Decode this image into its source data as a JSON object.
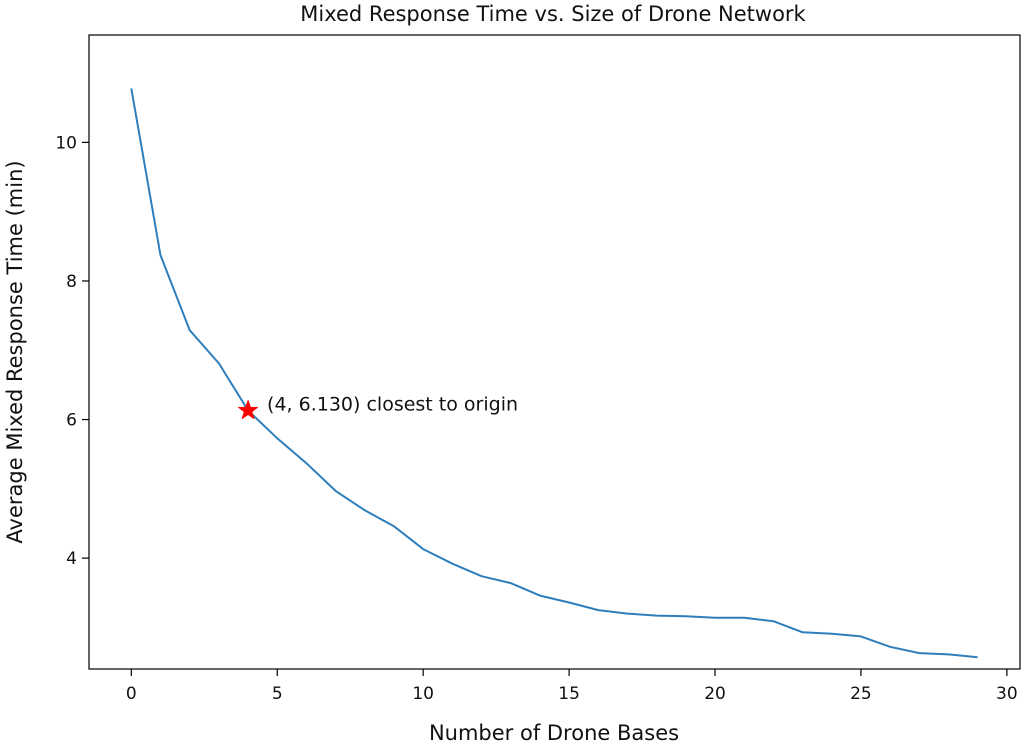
{
  "chart_data": {
    "type": "line",
    "title": "Mixed Response Time vs. Size of Drone Network",
    "xlabel": "Number of Drone Bases",
    "ylabel": "Average Mixed Response Time (min)",
    "xlim": [
      -1.45,
      30.45
    ],
    "ylim": [
      2.4,
      11.55
    ],
    "xticks": [
      0,
      5,
      10,
      15,
      20,
      25,
      30
    ],
    "yticks": [
      4,
      6,
      8,
      10
    ],
    "grid": false,
    "line_color": "#2f7ebc",
    "series": [
      {
        "x": [
          0,
          1,
          2,
          3,
          4,
          5,
          6,
          7,
          8,
          9,
          10,
          11,
          12,
          13,
          14,
          15,
          16,
          17,
          18,
          19,
          20,
          21,
          22,
          23,
          24,
          25,
          26,
          27,
          28,
          29
        ],
        "values": [
          10.78,
          8.37,
          7.29,
          6.81,
          6.13,
          5.73,
          5.37,
          4.97,
          4.69,
          4.46,
          4.13,
          3.92,
          3.74,
          3.64,
          3.46,
          3.36,
          3.25,
          3.2,
          3.17,
          3.16,
          3.14,
          3.14,
          3.09,
          2.93,
          2.91,
          2.87,
          2.72,
          2.63,
          2.61,
          2.57
        ]
      }
    ],
    "highlight": {
      "x": 4,
      "y": 6.13,
      "marker": "star",
      "color": "#ff0000",
      "label": "(4, 6.130) closest to origin"
    }
  }
}
